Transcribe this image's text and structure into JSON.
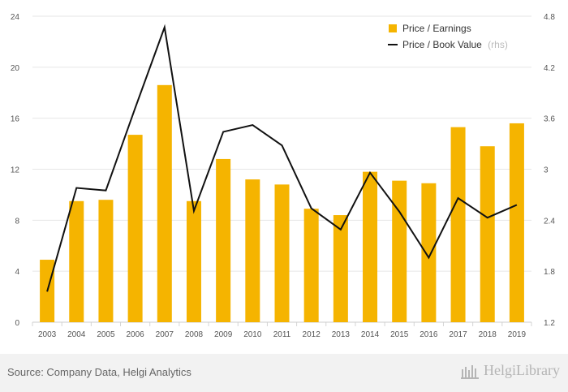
{
  "chart_data": {
    "type": "bar",
    "categories": [
      "2003",
      "2004",
      "2005",
      "2006",
      "2007",
      "2008",
      "2009",
      "2010",
      "2011",
      "2012",
      "2013",
      "2014",
      "2015",
      "2016",
      "2017",
      "2018",
      "2019"
    ],
    "series": [
      {
        "name": "Price / Earnings",
        "type": "bar",
        "axis": "left",
        "color": "#f5b400",
        "values": [
          4.9,
          9.5,
          9.6,
          14.7,
          18.6,
          9.5,
          12.8,
          11.2,
          10.8,
          8.9,
          8.4,
          11.8,
          11.1,
          10.9,
          15.3,
          13.8,
          15.6
        ]
      },
      {
        "name": "Price / Book Value",
        "type": "line",
        "axis": "right",
        "color": "#111111",
        "values": [
          1.56,
          2.78,
          2.75,
          3.72,
          4.67,
          2.51,
          3.44,
          3.52,
          3.28,
          2.54,
          2.29,
          2.96,
          2.5,
          1.96,
          2.66,
          2.43,
          2.58
        ]
      }
    ],
    "legend_note": "(rhs)",
    "y_left": {
      "ylim": [
        0,
        24
      ],
      "ticks": [
        "0",
        "4",
        "8",
        "12",
        "16",
        "20",
        "24"
      ]
    },
    "y_right": {
      "ylim": [
        1.2,
        4.8
      ],
      "ticks": [
        "1.2",
        "1.8",
        "2.4",
        "3",
        "3.6",
        "4.2",
        "4.8"
      ]
    },
    "grid": true,
    "legend_position": "top-right"
  },
  "footer": {
    "source": "Source: Company Data, Helgi Analytics",
    "brand": "HelgiLibrary"
  }
}
